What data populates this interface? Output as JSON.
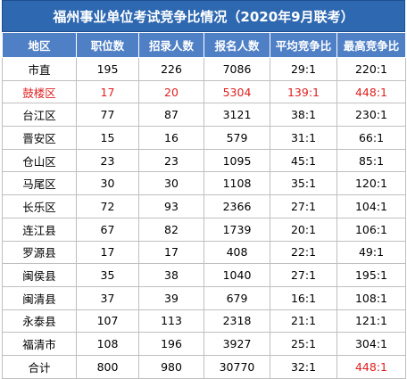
{
  "title": "福州事业单位考试竞争比情况（2020年9月联考）",
  "colors": {
    "header_bg": "#2e68b1",
    "col_header_bg": "#4f80c6",
    "highlight": "#e02020"
  },
  "columns": [
    "地区",
    "职位数",
    "招录人数",
    "报名人数",
    "平均竞争比",
    "最高竞争比"
  ],
  "rows": [
    [
      "市直",
      "195",
      "226",
      "7086",
      "29:1",
      "220:1"
    ],
    [
      "鼓楼区",
      "17",
      "20",
      "5304",
      "139:1",
      "448:1"
    ],
    [
      "台江区",
      "77",
      "87",
      "3121",
      "38:1",
      "230:1"
    ],
    [
      "晋安区",
      "15",
      "16",
      "579",
      "31:1",
      "66:1"
    ],
    [
      "仓山区",
      "23",
      "23",
      "1095",
      "45:1",
      "85:1"
    ],
    [
      "马尾区",
      "30",
      "30",
      "1108",
      "35:1",
      "120:1"
    ],
    [
      "长乐区",
      "72",
      "93",
      "2366",
      "27:1",
      "104:1"
    ],
    [
      "连江县",
      "67",
      "82",
      "1739",
      "20:1",
      "106:1"
    ],
    [
      "罗源县",
      "17",
      "17",
      "408",
      "22:1",
      "49:1"
    ],
    [
      "闽侯县",
      "35",
      "38",
      "1040",
      "27:1",
      "195:1"
    ],
    [
      "闽清县",
      "37",
      "39",
      "679",
      "16:1",
      "108:1"
    ],
    [
      "永泰县",
      "107",
      "113",
      "2318",
      "21:1",
      "121:1"
    ],
    [
      "福清市",
      "108",
      "196",
      "3927",
      "25:1",
      "304:1"
    ],
    [
      "合计",
      "800",
      "980",
      "30770",
      "32:1",
      "448:1"
    ]
  ],
  "highlight_row": 1,
  "highlight_cells": [
    [
      13,
      5
    ]
  ]
}
